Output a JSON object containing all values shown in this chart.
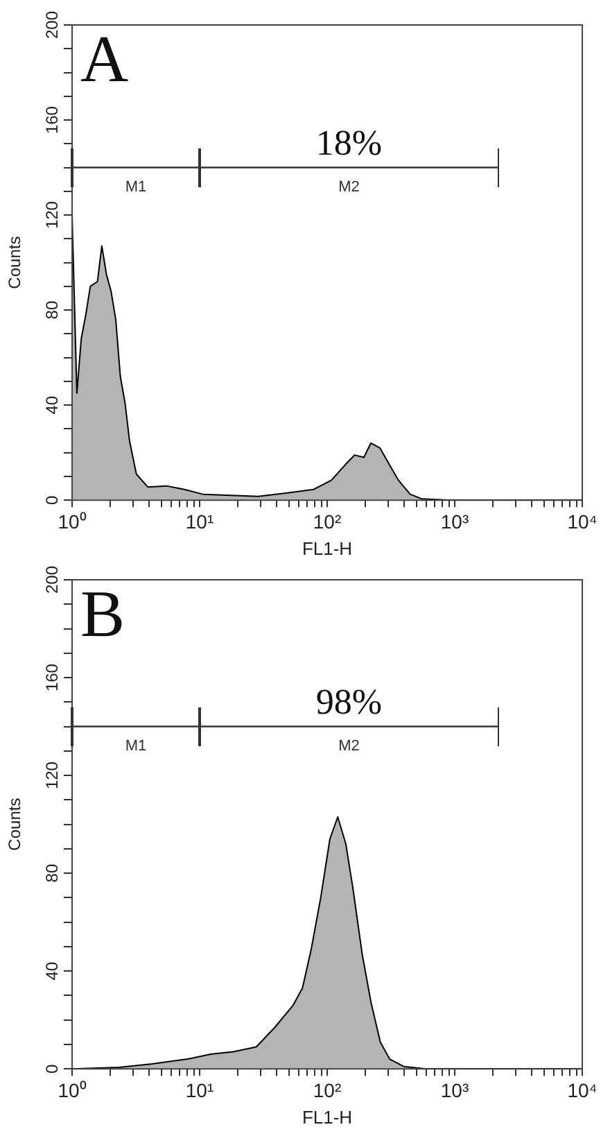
{
  "chart_data": [
    {
      "type": "area",
      "title": "A",
      "xlabel": "FL1-H",
      "ylabel": "Counts",
      "log": "x",
      "annotations": [
        "M1",
        "M2",
        "18%"
      ],
      "xlim": [
        1,
        10000
      ],
      "ylim": [
        0,
        200
      ],
      "xticks": [
        {
          "value": 1,
          "label": "10⁰"
        },
        {
          "value": 2,
          "label": null
        },
        {
          "value": 3,
          "label": null
        },
        {
          "value": 4,
          "label": null
        },
        {
          "value": 5,
          "label": null
        },
        {
          "value": 6,
          "label": null
        },
        {
          "value": 7,
          "label": null
        },
        {
          "value": 8,
          "label": null
        },
        {
          "value": 9,
          "label": null
        },
        {
          "value": 10,
          "label": "10¹"
        },
        {
          "value": 20,
          "label": null
        },
        {
          "value": 30,
          "label": null
        },
        {
          "value": 40,
          "label": null
        },
        {
          "value": 50,
          "label": null
        },
        {
          "value": 60,
          "label": null
        },
        {
          "value": 70,
          "label": null
        },
        {
          "value": 80,
          "label": null
        },
        {
          "value": 90,
          "label": null
        },
        {
          "value": 100,
          "label": "10²"
        },
        {
          "value": 200,
          "label": null
        },
        {
          "value": 300,
          "label": null
        },
        {
          "value": 400,
          "label": null
        },
        {
          "value": 500,
          "label": null
        },
        {
          "value": 600,
          "label": null
        },
        {
          "value": 700,
          "label": null
        },
        {
          "value": 800,
          "label": null
        },
        {
          "value": 900,
          "label": null
        },
        {
          "value": 1000,
          "label": "10³"
        },
        {
          "value": 2000,
          "label": null
        },
        {
          "value": 3000,
          "label": null
        },
        {
          "value": 4000,
          "label": null
        },
        {
          "value": 5000,
          "label": null
        },
        {
          "value": 6000,
          "label": null
        },
        {
          "value": 7000,
          "label": null
        },
        {
          "value": 8000,
          "label": null
        },
        {
          "value": 9000,
          "label": null
        },
        {
          "value": 10000,
          "label": "10⁴"
        }
      ],
      "yticks": [
        0,
        {
          "value": 10,
          "label": null
        },
        {
          "value": 20,
          "label": null
        },
        {
          "value": 30,
          "label": null
        },
        40,
        {
          "value": 50,
          "label": null
        },
        {
          "value": 60,
          "label": null
        },
        {
          "value": 70,
          "label": null
        },
        80,
        {
          "value": 90,
          "label": null
        },
        {
          "value": 100,
          "label": null
        },
        {
          "value": 110,
          "label": null
        },
        120,
        {
          "value": 130,
          "label": null
        },
        {
          "value": 140,
          "label": null
        },
        {
          "value": 150,
          "label": null
        },
        160,
        {
          "value": 170,
          "label": null
        },
        {
          "value": 180,
          "label": null
        },
        {
          "value": 190,
          "label": null
        },
        200
      ],
      "series": [
        {
          "color": "#b4b4b4",
          "x": [
            1,
            1.09,
            1.18,
            1.28,
            1.39,
            1.58,
            1.71,
            1.86,
            2.02,
            2.2,
            2.39,
            2.6,
            2.82,
            3.19,
            3.93,
            5.5,
            7.6,
            10.6,
            17.5,
            28.8,
            47.5,
            78,
            108,
            139,
            164,
            194,
            220,
            259,
            307,
            362,
            447,
            550,
            940,
            10000
          ],
          "values": [
            120,
            45,
            68,
            78,
            90,
            92,
            107,
            95,
            88,
            76,
            52,
            41,
            25,
            11,
            5.5,
            6,
            4.5,
            2.5,
            2,
            1.6,
            3,
            4.5,
            8.4,
            15,
            19,
            18,
            24,
            22,
            15,
            8.4,
            2.5,
            0.6,
            0,
            0
          ]
        },
        {
          "type": "line",
          "color": "#333333",
          "x": [
            1,
            10,
            2200
          ],
          "values": [
            140,
            140,
            140
          ]
        }
      ]
    },
    {
      "type": "area",
      "title": "B",
      "xlabel": "FL1-H",
      "ylabel": "Counts",
      "log": "x",
      "annotations": [
        "M1",
        "M2",
        "98%"
      ],
      "xlim": [
        1,
        10000
      ],
      "ylim": [
        0,
        200
      ],
      "xticks": [
        {
          "value": 1,
          "label": "10⁰"
        },
        {
          "value": 2,
          "label": null
        },
        {
          "value": 3,
          "label": null
        },
        {
          "value": 4,
          "label": null
        },
        {
          "value": 5,
          "label": null
        },
        {
          "value": 6,
          "label": null
        },
        {
          "value": 7,
          "label": null
        },
        {
          "value": 8,
          "label": null
        },
        {
          "value": 9,
          "label": null
        },
        {
          "value": 10,
          "label": "10¹"
        },
        {
          "value": 20,
          "label": null
        },
        {
          "value": 30,
          "label": null
        },
        {
          "value": 40,
          "label": null
        },
        {
          "value": 50,
          "label": null
        },
        {
          "value": 60,
          "label": null
        },
        {
          "value": 70,
          "label": null
        },
        {
          "value": 80,
          "label": null
        },
        {
          "value": 90,
          "label": null
        },
        {
          "value": 100,
          "label": "10²"
        },
        {
          "value": 200,
          "label": null
        },
        {
          "value": 300,
          "label": null
        },
        {
          "value": 400,
          "label": null
        },
        {
          "value": 500,
          "label": null
        },
        {
          "value": 600,
          "label": null
        },
        {
          "value": 700,
          "label": null
        },
        {
          "value": 800,
          "label": null
        },
        {
          "value": 900,
          "label": null
        },
        {
          "value": 1000,
          "label": "10³"
        },
        {
          "value": 2000,
          "label": null
        },
        {
          "value": 3000,
          "label": null
        },
        {
          "value": 4000,
          "label": null
        },
        {
          "value": 5000,
          "label": null
        },
        {
          "value": 6000,
          "label": null
        },
        {
          "value": 7000,
          "label": null
        },
        {
          "value": 8000,
          "label": null
        },
        {
          "value": 9000,
          "label": null
        },
        {
          "value": 10000,
          "label": "10⁴"
        }
      ],
      "yticks": [
        0,
        {
          "value": 10,
          "label": null
        },
        {
          "value": 20,
          "label": null
        },
        {
          "value": 30,
          "label": null
        },
        40,
        {
          "value": 50,
          "label": null
        },
        {
          "value": 60,
          "label": null
        },
        {
          "value": 70,
          "label": null
        },
        80,
        {
          "value": 90,
          "label": null
        },
        {
          "value": 100,
          "label": null
        },
        {
          "value": 110,
          "label": null
        },
        120,
        {
          "value": 130,
          "label": null
        },
        {
          "value": 140,
          "label": null
        },
        {
          "value": 150,
          "label": null
        },
        160,
        {
          "value": 170,
          "label": null
        },
        {
          "value": 180,
          "label": null
        },
        {
          "value": 190,
          "label": null
        },
        200
      ],
      "series": [
        {
          "color": "#b4b4b4",
          "x": [
            1,
            2.33,
            4.15,
            8.05,
            12.2,
            18.4,
            27.8,
            38.9,
            54,
            64,
            75,
            89,
            105,
            121,
            140,
            159,
            188,
            221,
            261,
            309,
            397,
            596,
            10000
          ],
          "values": [
            0,
            0.6,
            2,
            4,
            6,
            7,
            9,
            17,
            26,
            33,
            49,
            70,
            94,
            103,
            92,
            74,
            47,
            27,
            11,
            4,
            1,
            0,
            0
          ]
        },
        {
          "type": "line",
          "color": "#333333",
          "x": [
            1,
            10,
            2200
          ],
          "values": [
            140,
            140,
            140
          ]
        }
      ]
    }
  ]
}
